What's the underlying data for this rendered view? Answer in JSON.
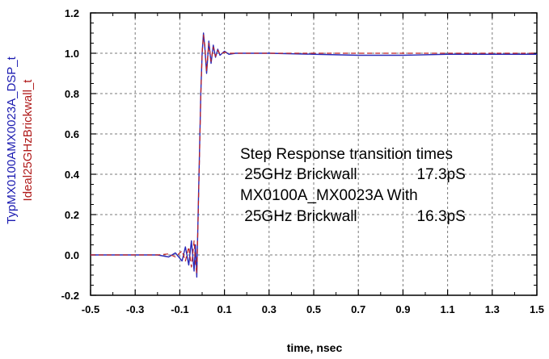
{
  "chart_data": {
    "type": "line",
    "xlabel": "time, nsec",
    "ylabels": [
      "TypMX0100AMX0023A_DSP_t",
      "Ideal25GHzBrickwall_t"
    ],
    "xlim": [
      -0.5,
      1.5
    ],
    "ylim": [
      -0.2,
      1.2
    ],
    "xticks": [
      "-0.5",
      "-0.3",
      "-0.1",
      "0.1",
      "0.3",
      "0.5",
      "0.7",
      "0.9",
      "1.1",
      "1.3",
      "1.5"
    ],
    "yticks": [
      "-0.2",
      "0.0",
      "0.2",
      "0.4",
      "0.6",
      "0.8",
      "1.0",
      "1.2"
    ],
    "grid": true,
    "series": [
      {
        "name": "TypMX0100AMX0023A_DSP_t",
        "color": "#2a2ab8",
        "x": [
          -0.5,
          -0.3,
          -0.2,
          -0.15,
          -0.12,
          -0.09,
          -0.075,
          -0.06,
          -0.048,
          -0.036,
          -0.03,
          -0.024,
          -0.018,
          -0.012,
          -0.006,
          0.0,
          0.006,
          0.012,
          0.02,
          0.03,
          0.04,
          0.05,
          0.06,
          0.07,
          0.08,
          0.1,
          0.12,
          0.15,
          0.2,
          0.3,
          0.5,
          0.7,
          0.9,
          1.1,
          1.3,
          1.5
        ],
        "y": [
          0.0,
          0.0,
          0.0,
          -0.01,
          0.01,
          -0.03,
          0.04,
          -0.05,
          0.07,
          -0.08,
          0.05,
          -0.11,
          0.2,
          0.5,
          0.8,
          1.0,
          1.1,
          1.03,
          0.9,
          1.06,
          0.95,
          1.04,
          0.98,
          1.02,
          0.99,
          1.01,
          0.995,
          1.0,
          1.0,
          1.0,
          0.995,
          0.99,
          0.99,
          0.995,
          0.995,
          0.995
        ]
      },
      {
        "name": "Ideal25GHzBrickwall_t",
        "color": "#c02020",
        "x": [
          -0.5,
          -0.3,
          -0.2,
          -0.15,
          -0.12,
          -0.09,
          -0.075,
          -0.06,
          -0.048,
          -0.036,
          -0.03,
          -0.024,
          -0.018,
          -0.012,
          -0.006,
          0.0,
          0.006,
          0.012,
          0.02,
          0.03,
          0.04,
          0.05,
          0.06,
          0.07,
          0.08,
          0.1,
          0.12,
          0.15,
          0.2,
          0.3,
          0.5,
          0.7,
          0.9,
          1.1,
          1.3,
          1.5
        ],
        "y": [
          0.0,
          0.0,
          0.0,
          0.005,
          -0.01,
          0.02,
          -0.03,
          0.04,
          -0.06,
          0.07,
          -0.04,
          -0.09,
          0.18,
          0.48,
          0.79,
          1.0,
          1.09,
          1.04,
          0.91,
          1.05,
          0.96,
          1.03,
          0.985,
          1.015,
          0.995,
          1.005,
          1.0,
          1.0,
          1.0,
          1.0,
          1.0,
          1.0,
          1.0,
          1.0,
          1.0,
          1.0
        ]
      }
    ],
    "annotation": [
      "Step Response transition times",
      " 25GHz Brickwall              17.3pS",
      "MX0100A_MX0023A With",
      " 25GHz Brickwall              16.3pS"
    ]
  }
}
